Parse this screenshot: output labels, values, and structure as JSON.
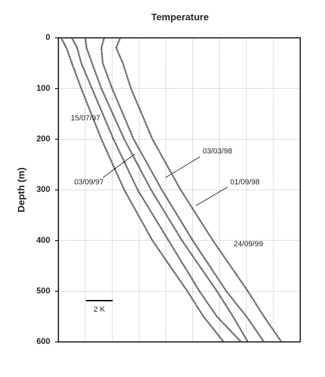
{
  "chart_data": {
    "type": "line",
    "title": "Temperature",
    "y_label": "Depth (m)",
    "y": [
      0,
      20,
      50,
      100,
      200,
      300,
      400,
      500,
      550,
      600
    ],
    "series": [
      {
        "name": "15/07/97",
        "color": "#333333",
        "values": [
          0.2,
          0.6,
          1.0,
          1.7,
          3.2,
          4.9,
          7.0,
          9.6,
          10.8,
          12.3
        ]
      },
      {
        "name": "03/09/97",
        "color": "#333333",
        "values": [
          1.0,
          1.4,
          1.7,
          2.5,
          4.1,
          5.9,
          8.2,
          10.5,
          11.8,
          13.6
        ]
      },
      {
        "name": "03/03/98",
        "color": "#333333",
        "values": [
          2.0,
          2.1,
          2.5,
          3.2,
          4.9,
          6.9,
          9.2,
          11.8,
          13.0,
          14.1
        ]
      },
      {
        "name": "01/09/98",
        "color": "#333333",
        "values": [
          3.4,
          3.2,
          3.3,
          4.0,
          5.6,
          7.7,
          10.0,
          12.5,
          14.0,
          15.3
        ]
      },
      {
        "name": "24/09/99",
        "color": "#333333",
        "values": [
          4.6,
          4.3,
          4.8,
          5.4,
          7.0,
          9.1,
          11.5,
          14.1,
          15.3,
          16.6
        ]
      }
    ],
    "xlim": [
      0,
      18
    ],
    "xticks": [
      0,
      2,
      4,
      6,
      8,
      10,
      12,
      14,
      16,
      18
    ],
    "ylim": [
      0,
      600
    ],
    "yticks": [
      0,
      100,
      200,
      300,
      400,
      500,
      600
    ],
    "y_inverted": true,
    "grid": true,
    "scale_bar": {
      "label": "2 K",
      "value": 2
    }
  }
}
